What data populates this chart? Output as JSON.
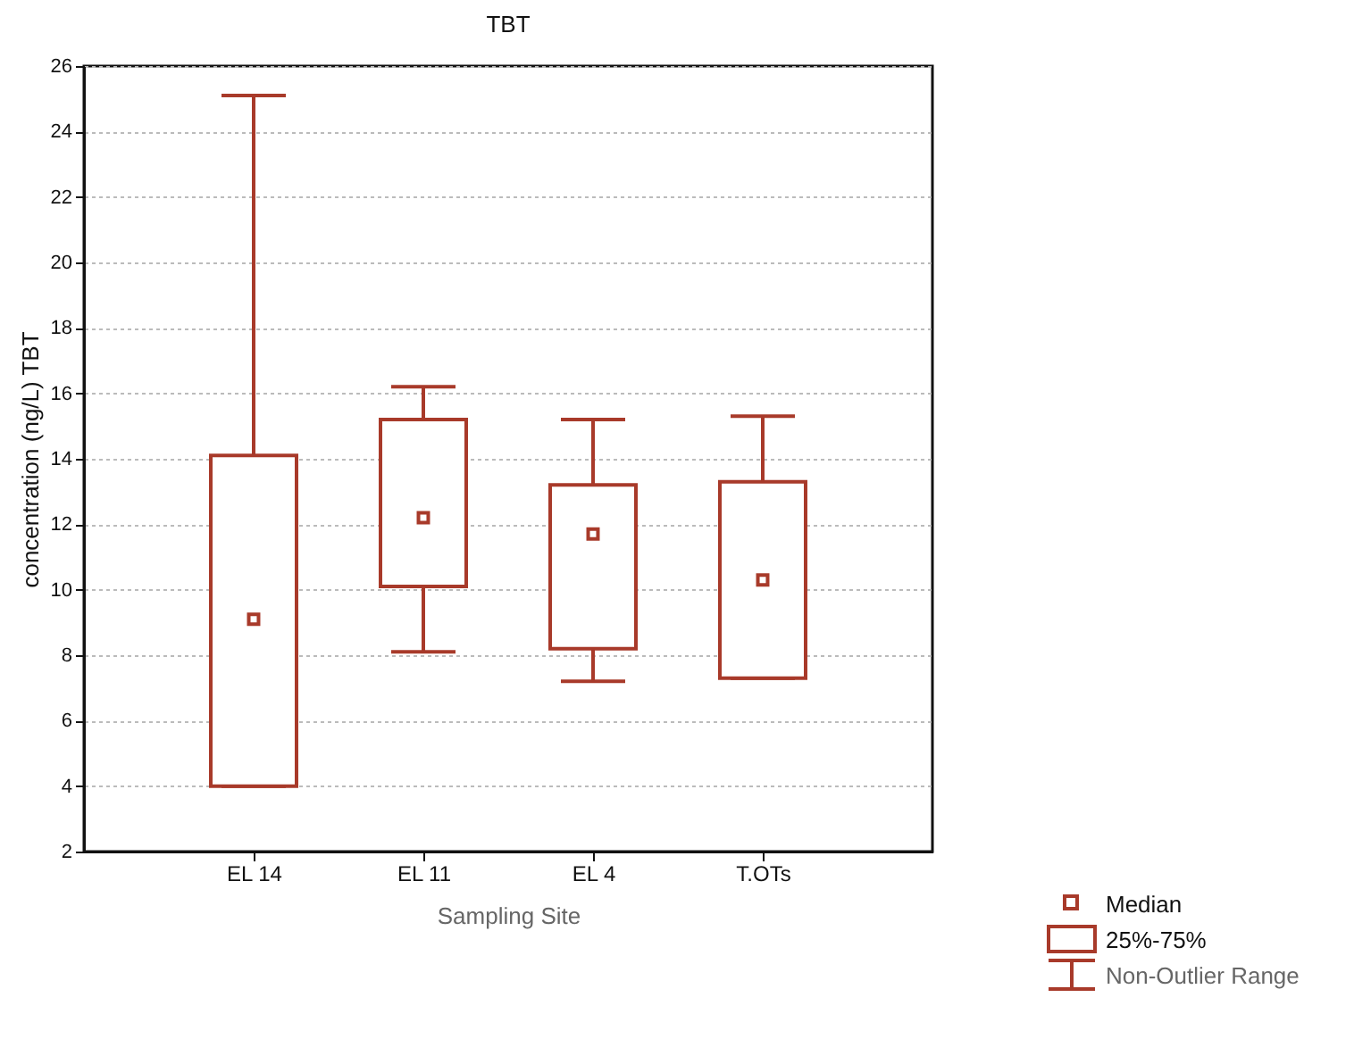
{
  "chart_data": {
    "type": "box",
    "title": "TBT",
    "xlabel": "Sampling Site",
    "ylabel": "concentration (ng/L) TBT",
    "categories": [
      "EL 14",
      "EL 11",
      "EL 4",
      "T.OTs"
    ],
    "boxes": [
      {
        "low": 4,
        "q1": 4,
        "median": 9.1,
        "q3": 14.1,
        "high": 25.1
      },
      {
        "low": 8.1,
        "q1": 10.1,
        "median": 12.2,
        "q3": 15.2,
        "high": 16.2
      },
      {
        "low": 7.2,
        "q1": 8.2,
        "median": 11.7,
        "q3": 13.2,
        "high": 15.2
      },
      {
        "low": 7.3,
        "q1": 7.3,
        "median": 10.3,
        "q3": 13.3,
        "high": 15.3
      }
    ],
    "color": "#a83a2a",
    "marker": "square",
    "ylim": [
      2,
      26
    ],
    "yticks": [
      2,
      4,
      6,
      8,
      10,
      12,
      14,
      16,
      18,
      20,
      22,
      24,
      26
    ],
    "grid": "y",
    "annotations": [
      "Median",
      "25%-75%",
      "Non-Outlier Range"
    ]
  }
}
